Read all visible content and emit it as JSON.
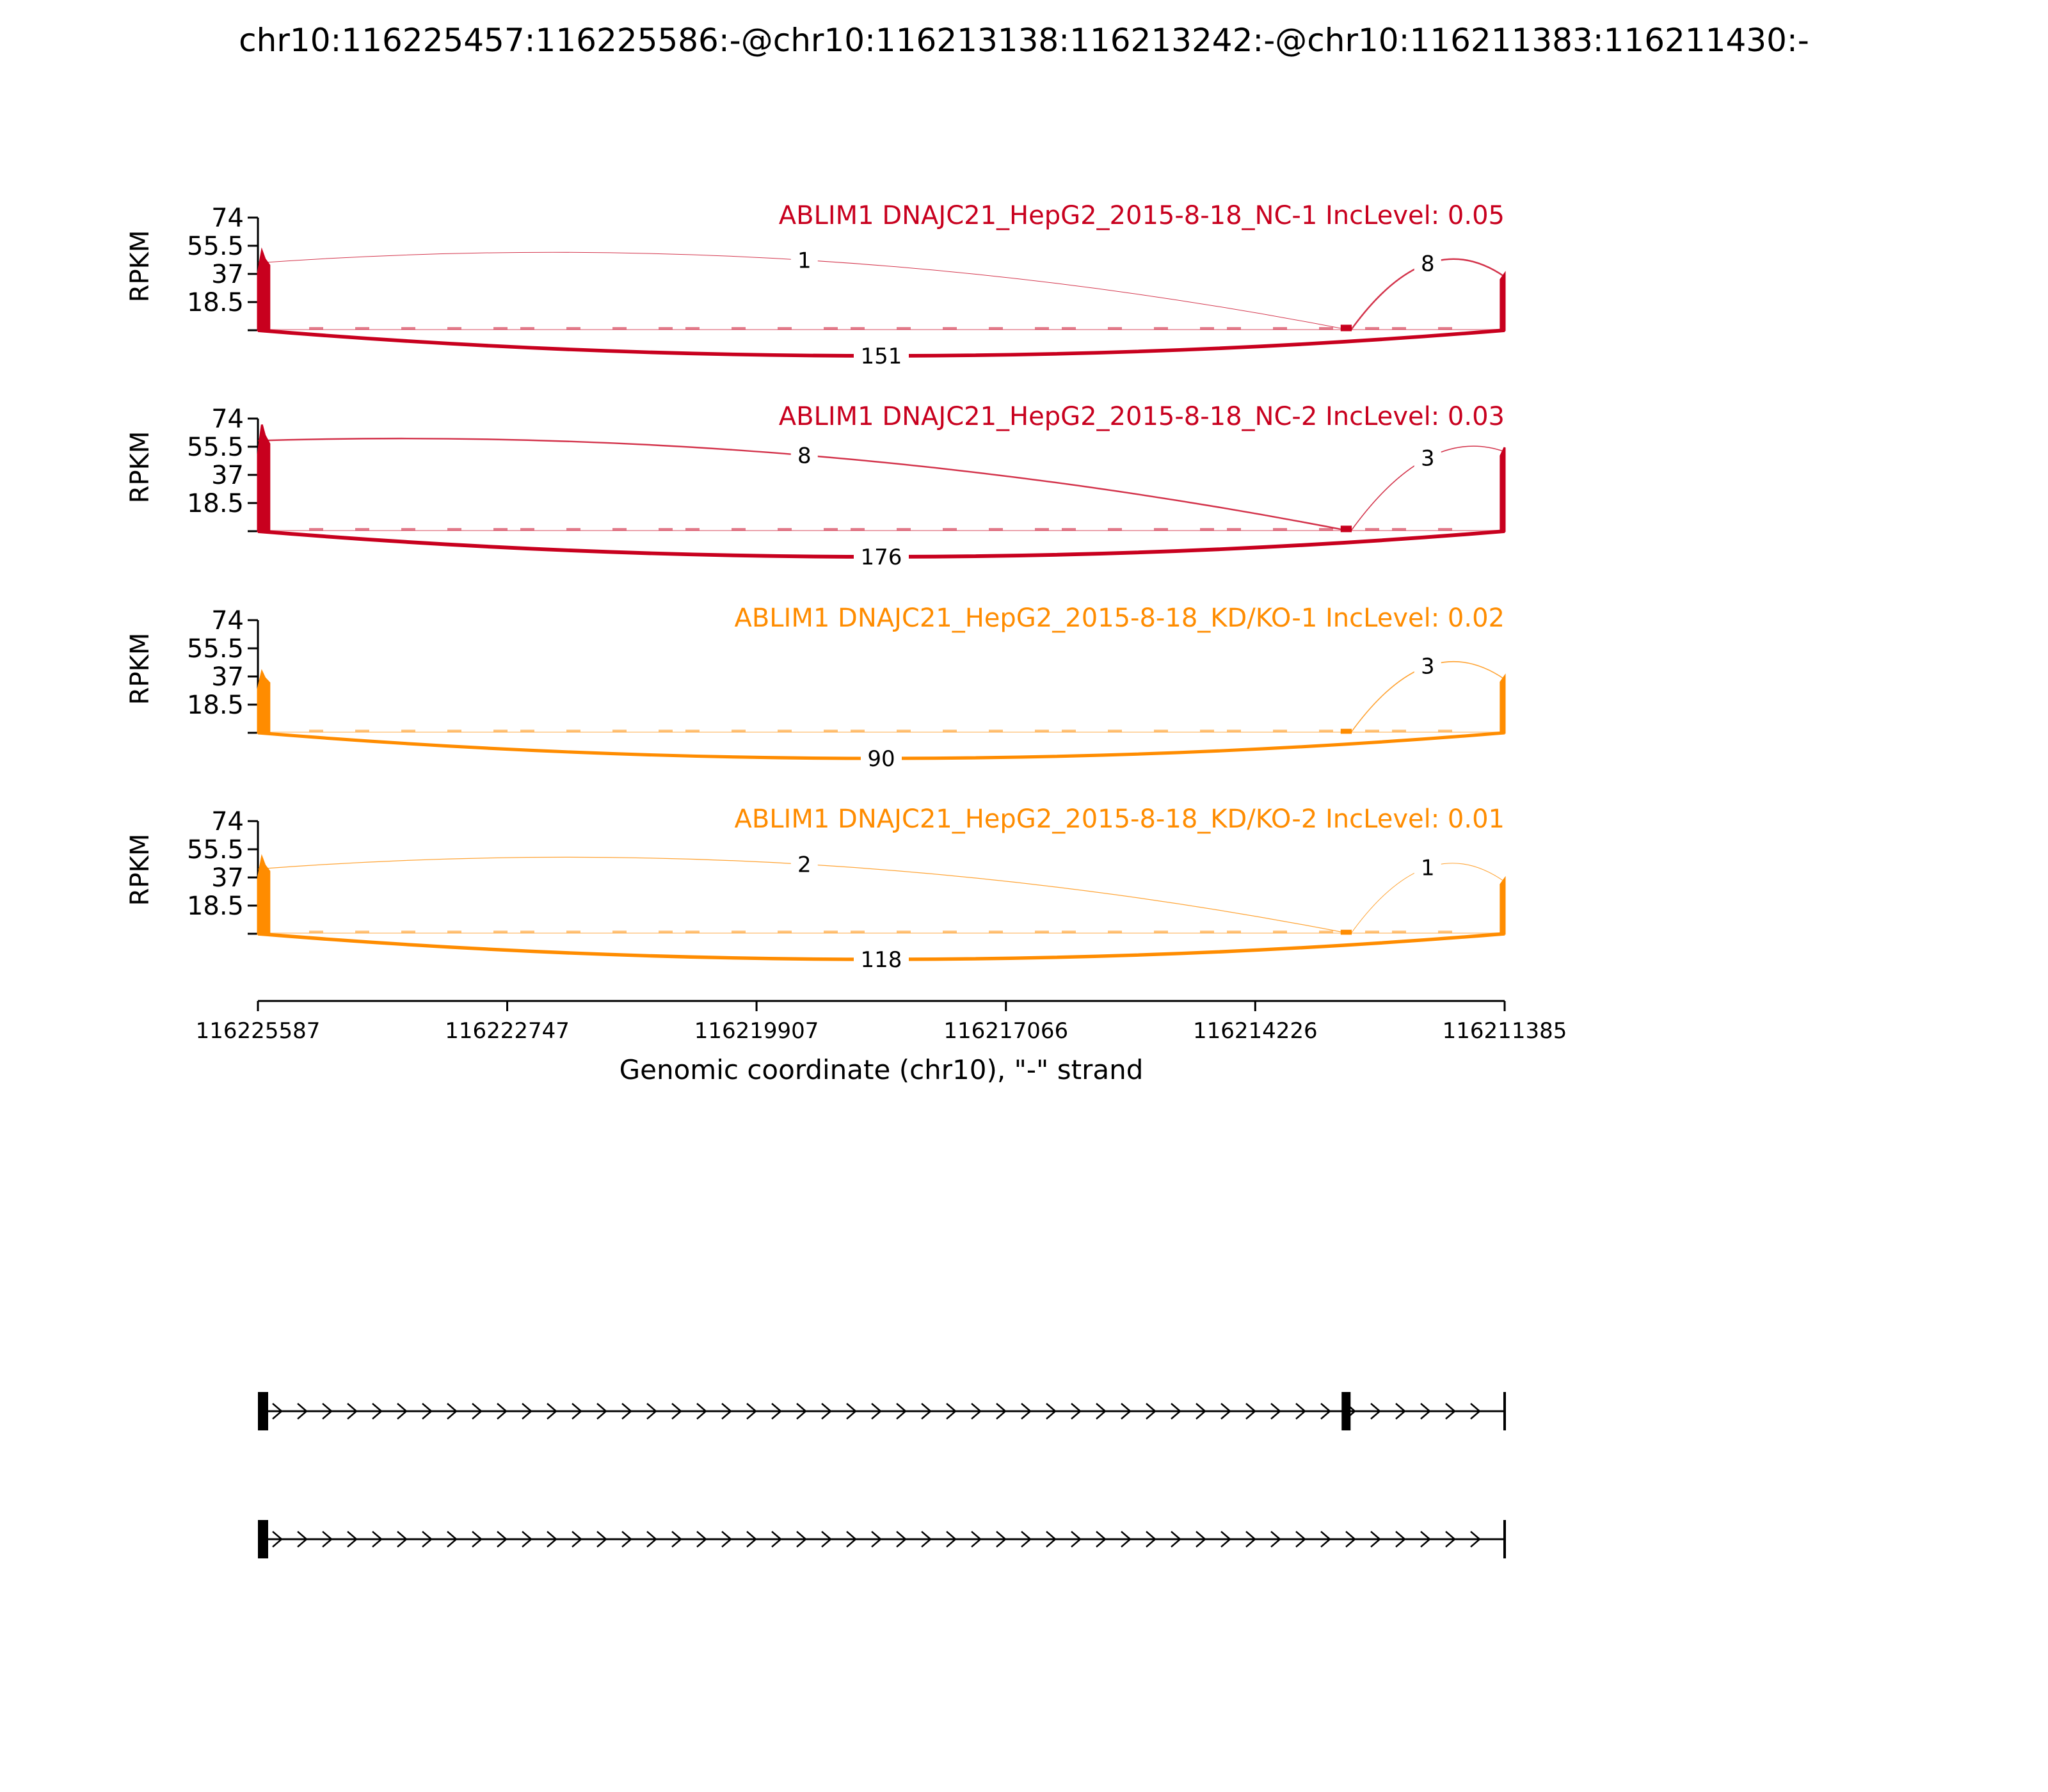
{
  "title": "chr10:116225457:116225586:-@chr10:116213138:116213242:-@chr10:116211383:116211430:-",
  "chart_data": {
    "type": "area",
    "chart_kind": "sashimi plot",
    "x_axis": {
      "label": "Genomic coordinate (chr10), \"-\" strand",
      "range": [
        116225587,
        116211385
      ],
      "ticks": [
        "116225587",
        "116222747",
        "116219907",
        "116217066",
        "116214226",
        "116211385"
      ],
      "reversed": true
    },
    "y_axis": {
      "label": "RPKM",
      "range": [
        0,
        74
      ],
      "ticks": [
        "18.5",
        "37",
        "55.5",
        "74"
      ]
    },
    "exons": [
      {
        "start": 116225587,
        "end": 116225457
      },
      {
        "start": 116213242,
        "end": 116213138
      },
      {
        "start": 116211430,
        "end": 116211385
      }
    ],
    "panels": [
      {
        "label": "ABLIM1 DNAJC21_HepG2_2015-8-18_NC-1 IncLevel: 0.05",
        "color": "#c8001e",
        "exon_peaks": [
          52,
          3,
          37
        ],
        "junctions": [
          {
            "from": 116225587,
            "to": 116213138,
            "count": "1",
            "side": "above"
          },
          {
            "from": 116213138,
            "to": 116211385,
            "count": "8",
            "side": "above"
          },
          {
            "from": 116225587,
            "to": 116211385,
            "count": "151",
            "side": "below"
          }
        ]
      },
      {
        "label": "ABLIM1 DNAJC21_HepG2_2015-8-18_NC-2 IncLevel: 0.03",
        "color": "#c8001e",
        "exon_peaks": [
          70,
          3,
          55
        ],
        "junctions": [
          {
            "from": 116225587,
            "to": 116213138,
            "count": "8",
            "side": "above"
          },
          {
            "from": 116213138,
            "to": 116211385,
            "count": "3",
            "side": "above"
          },
          {
            "from": 116225587,
            "to": 116211385,
            "count": "176",
            "side": "below"
          }
        ]
      },
      {
        "label": "ABLIM1 DNAJC21_HepG2_2015-8-18_KD/KO-1 IncLevel: 0.02",
        "color": "#ff8c00",
        "exon_peaks": [
          40,
          2,
          37
        ],
        "junctions": [
          {
            "from": 116213138,
            "to": 116211385,
            "count": "3",
            "side": "above"
          },
          {
            "from": 116225587,
            "to": 116211385,
            "count": "90",
            "side": "below"
          }
        ]
      },
      {
        "label": "ABLIM1 DNAJC21_HepG2_2015-8-18_KD/KO-2 IncLevel: 0.01",
        "color": "#ff8c00",
        "exon_peaks": [
          50,
          2,
          36
        ],
        "junctions": [
          {
            "from": 116225587,
            "to": 116213138,
            "count": "2",
            "side": "above"
          },
          {
            "from": 116213138,
            "to": 116211385,
            "count": "1",
            "side": "above"
          },
          {
            "from": 116225587,
            "to": 116211385,
            "count": "118",
            "side": "below"
          }
        ]
      }
    ],
    "isoforms": [
      {
        "exons": [
          0,
          1,
          2
        ]
      },
      {
        "exons": [
          0,
          2
        ]
      }
    ]
  }
}
